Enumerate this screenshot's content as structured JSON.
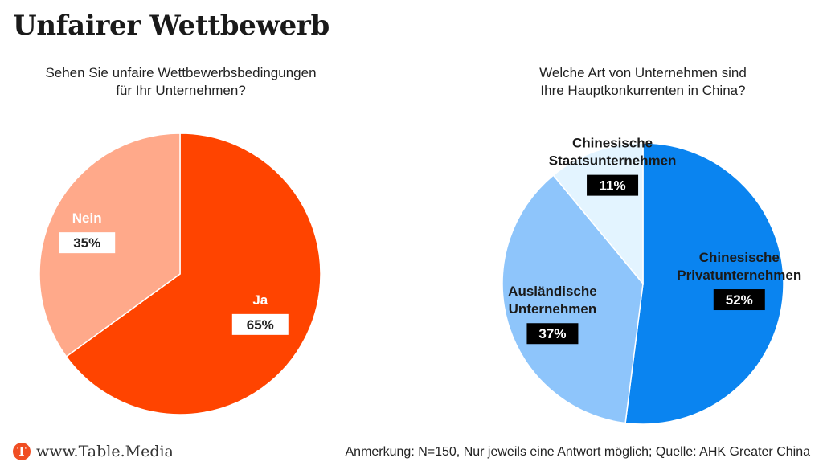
{
  "title": "Unfairer Wettbewerb",
  "chart_data": [
    {
      "type": "pie",
      "title": "Sehen Sie unfaire Wettbewerbsbedingungen für Ihr Unternehmen?",
      "title_lines": [
        "Sehen Sie unfaire Wettbewerbsbedingungen",
        "für Ihr Unternehmen?"
      ],
      "slices": [
        {
          "label": "Ja",
          "label_lines": [
            "Ja"
          ],
          "value": 65,
          "value_label": "65%",
          "color": "#ff4400"
        },
        {
          "label": "Nein",
          "label_lines": [
            "Nein"
          ],
          "value": 35,
          "value_label": "35%",
          "color": "#ffa98a"
        }
      ]
    },
    {
      "type": "pie",
      "title": "Welche Art von Unternehmen sind Ihre Hauptkonkurrenten in China?",
      "title_lines": [
        "Welche Art von Unternehmen sind",
        "Ihre Hauptkonkurrenten in China?"
      ],
      "slices": [
        {
          "label": "Chinesische Privatunternehmen",
          "label_lines": [
            "Chinesische",
            "Privatunternehmen"
          ],
          "value": 52,
          "value_label": "52%",
          "color": "#0a84f0"
        },
        {
          "label": "Ausländische Unternehmen",
          "label_lines": [
            "Ausländische",
            "Unternehmen"
          ],
          "value": 37,
          "value_label": "37%",
          "color": "#8ec5fb"
        },
        {
          "label": "Chinesische Staatsunternehmen",
          "label_lines": [
            "Chinesische",
            "Staatsunternehmen"
          ],
          "value": 11,
          "value_label": "11%",
          "color": "#e3f4ff"
        }
      ]
    }
  ],
  "footer": {
    "logo_letter": "T",
    "brand": "www.Table.Media",
    "note": "Anmerkung: N=150, Nur jeweils eine Antwort möglich; Quelle: AHK Greater China"
  }
}
